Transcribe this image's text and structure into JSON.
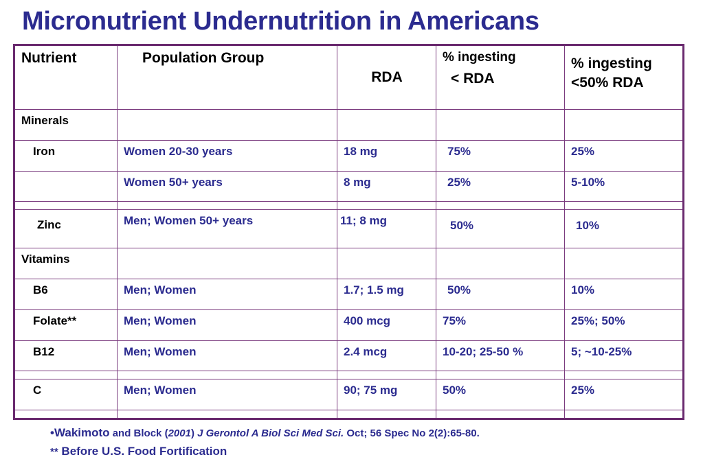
{
  "title": "Micronutrient Undernutrition in Americans",
  "headers": {
    "nutrient": "Nutrient",
    "population": "Population Group",
    "rda": "RDA",
    "pct_lt_rda_line1": "% ingesting",
    "pct_lt_rda_line2": "< RDA",
    "pct_lt_half_line1": "% ingesting",
    "pct_lt_half_line2": "<50% RDA"
  },
  "rows": [
    {
      "nutrient": "Minerals",
      "population": "",
      "rda": "",
      "pct_lt_rda": "",
      "pct_lt_half": ""
    },
    {
      "nutrient": "Iron",
      "population": "Women 20-30  years",
      "rda": "18 mg",
      "pct_lt_rda": "75%",
      "pct_lt_half": "25%"
    },
    {
      "nutrient": "",
      "population": "Women 50+ years",
      "rda": "8 mg",
      "pct_lt_rda": "25%",
      "pct_lt_half": "5-10%"
    },
    {
      "nutrient": "",
      "population": "",
      "rda": "",
      "pct_lt_rda": "",
      "pct_lt_half": ""
    },
    {
      "nutrient": "Zinc",
      "population": "Men; Women  50+ years",
      "rda": "11; 8 mg",
      "pct_lt_rda": "50%",
      "pct_lt_half": "10%"
    },
    {
      "nutrient": "Vitamins",
      "population": "",
      "rda": "",
      "pct_lt_rda": "",
      "pct_lt_half": ""
    },
    {
      "nutrient": "B6",
      "population": "Men; Women",
      "rda": "1.7; 1.5 mg",
      "pct_lt_rda": "50%",
      "pct_lt_half": "10%"
    },
    {
      "nutrient": "Folate**",
      "population": "Men; Women",
      "rda": "400 mcg",
      "pct_lt_rda": "75%",
      "pct_lt_half": "25%; 50%"
    },
    {
      "nutrient": "B12",
      "population": "Men; Women",
      "rda": "2.4 mcg",
      "pct_lt_rda": "10-20; 25-50 %",
      "pct_lt_half": "5; ~10-25%"
    },
    {
      "nutrient": "",
      "population": "",
      "rda": "",
      "pct_lt_rda": "",
      "pct_lt_half": ""
    },
    {
      "nutrient": "C",
      "population": "Men; Women",
      "rda": "90; 75 mg",
      "pct_lt_rda": "50%",
      "pct_lt_half": "25%"
    },
    {
      "nutrient": "",
      "population": "",
      "rda": "",
      "pct_lt_rda": "",
      "pct_lt_half": ""
    }
  ],
  "footnotes": {
    "bullet": "•",
    "author": "Wakimoto",
    "and_block": " and Block (",
    "year": "2001",
    "close_paren": ") ",
    "journal": "J Gerontol A Biol Sci Med Sci.",
    "citation_rest": " Oct; 56 Spec No 2(2):65-80.",
    "note_marker": "**",
    "note_text": " Before U.S. Food Fortification"
  }
}
